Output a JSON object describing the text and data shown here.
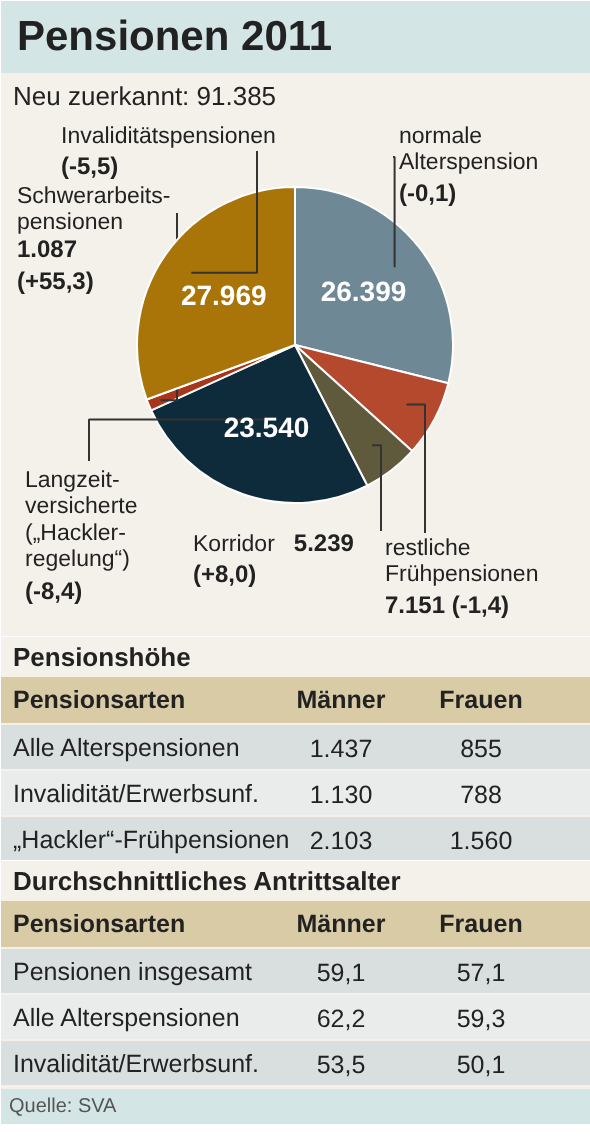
{
  "chart_data": [
    {
      "type": "pie",
      "title": "Pensionen 2011",
      "subtitle": "Neu zuerkannt: 91.385",
      "categories": [
        "normale\nAlterspension",
        "restliche\nFrühpensionen",
        "Korridor",
        "Langzeit-\nversicherte\n(„Hackler-\nregelung“)",
        "Schwerarbeits-\npensionen",
        "Invaliditätspensionen"
      ],
      "values": [
        26399,
        7151,
        5239,
        23540,
        1087,
        27969
      ],
      "colors": [
        "#6f8895",
        "#b5492e",
        "#5f5a3c",
        "#0e2b3b",
        "#a8361c",
        "#a97408"
      ],
      "value_labels": [
        "26.399",
        "7.151",
        "5.239",
        "23.540",
        "1.087",
        "27.969"
      ],
      "annotations": [
        "(-0,1)",
        "(-1,4)",
        "(+8,0)",
        "(-8,4)",
        "(+55,3)",
        "(-5,5)"
      ]
    },
    {
      "type": "other",
      "title": "Pensionshöhe",
      "ylabel": "Pensionsarten",
      "categories": [
        "Männer",
        "Frauen"
      ],
      "y_categories": [
        "Alle Alterspensionen",
        "Invalidität/Erwerbsunf.",
        "„Hackler“-Frühpensionen"
      ],
      "cell_labels": [
        [
          "1.437",
          "855"
        ],
        [
          "1.130",
          "788"
        ],
        [
          "2.103",
          "1.560"
        ]
      ]
    },
    {
      "type": "other",
      "title": "Durchschnittliches Antrittsalter",
      "ylabel": "Pensionsarten",
      "categories": [
        "Männer",
        "Frauen"
      ],
      "y_categories": [
        "Pensionen insgesamt",
        "Alle Alterspensionen",
        "Invalidität/Erwerbsunf."
      ],
      "cell_labels": [
        [
          "59,1",
          "57,1"
        ],
        [
          "62,2",
          "59,3"
        ],
        [
          "53,5",
          "50,1"
        ]
      ],
      "annotations": [
        "Quelle: SVA"
      ]
    }
  ]
}
